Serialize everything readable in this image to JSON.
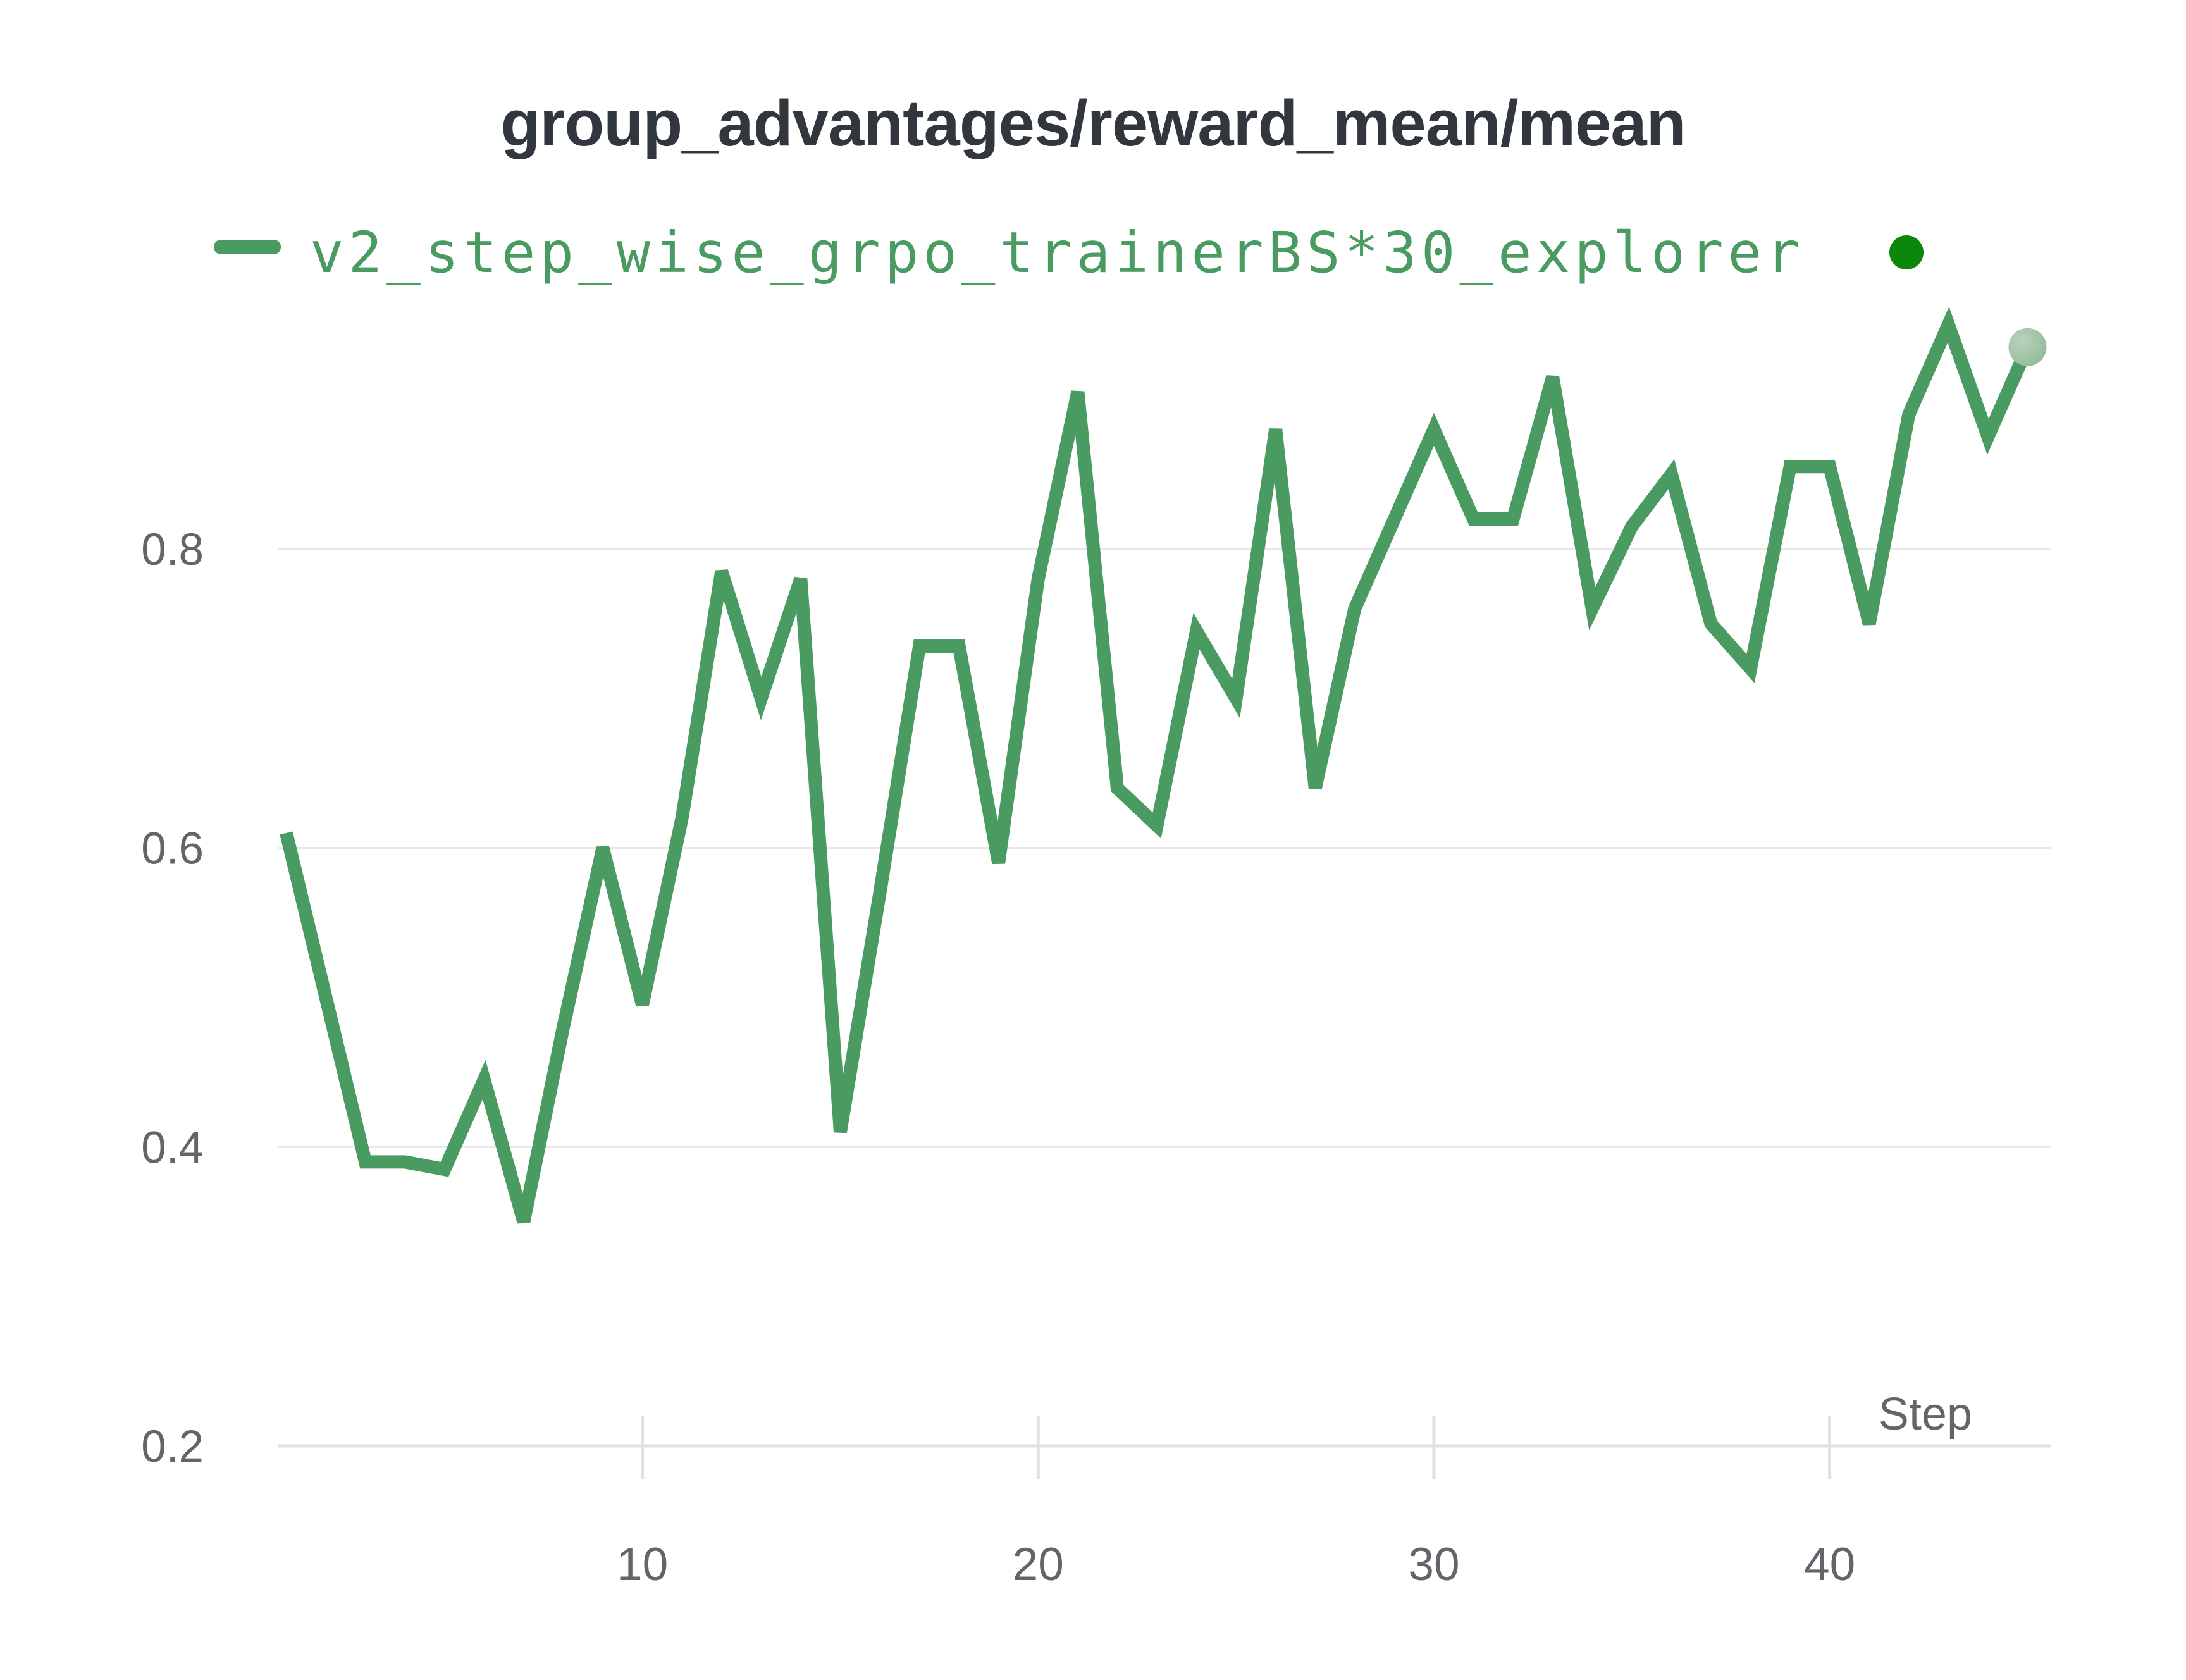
{
  "page": {
    "background_color": "#ffffff"
  },
  "header": {
    "title": "group_advantages/reward_mean/mean",
    "title_color": "#32373d"
  },
  "legend": {
    "series_label": "v2_step_wise_grpo_trainerBS*30_explorer",
    "series_label_color": "#4a9b61",
    "swatch_color": "#4a9b61",
    "run_state_dot_color": "#0b870b",
    "position": "top-left"
  },
  "chart_data": {
    "type": "line",
    "title": "group_advantages/reward_mean/mean",
    "xlabel": "Step",
    "ylabel": "",
    "legend_position": "top-left",
    "grid": "horizontal",
    "x": [
      1,
      2,
      3,
      4,
      5,
      6,
      7,
      8,
      9,
      10,
      11,
      12,
      13,
      14,
      15,
      16,
      17,
      18,
      19,
      20,
      21,
      22,
      23,
      24,
      25,
      26,
      27,
      28,
      29,
      30,
      31,
      32,
      33,
      34,
      35,
      36,
      37,
      38,
      39,
      40,
      41,
      42,
      43,
      44,
      45
    ],
    "series": [
      {
        "name": "v2_step_wise_grpo_trainerBS*30_explorer",
        "color": "#4a9b61",
        "end_marker_color": "#9cc0a3",
        "values": [
          0.61,
          0.5,
          0.39,
          0.39,
          0.385,
          0.445,
          0.35,
          0.48,
          0.6,
          0.495,
          0.62,
          0.785,
          0.7,
          0.78,
          0.41,
          0.57,
          0.735,
          0.735,
          0.59,
          0.78,
          0.905,
          0.64,
          0.615,
          0.745,
          0.7,
          0.88,
          0.64,
          0.76,
          0.82,
          0.88,
          0.82,
          0.82,
          0.915,
          0.76,
          0.815,
          0.85,
          0.75,
          0.72,
          0.855,
          0.855,
          0.75,
          0.89,
          0.95,
          0.875,
          0.935
        ]
      }
    ],
    "x_ticks": [
      10,
      20,
      30,
      40
    ],
    "y_ticks": [
      0.2,
      0.4,
      0.6,
      0.8
    ],
    "xlim": [
      0.8,
      45.6
    ],
    "ylim": [
      0.2,
      0.981
    ],
    "tick_label_color": "#63656b",
    "axis_title_color": "#63656b",
    "gridline_color": "#e8e8eb",
    "axis_line_color": "#e1e1e5"
  }
}
